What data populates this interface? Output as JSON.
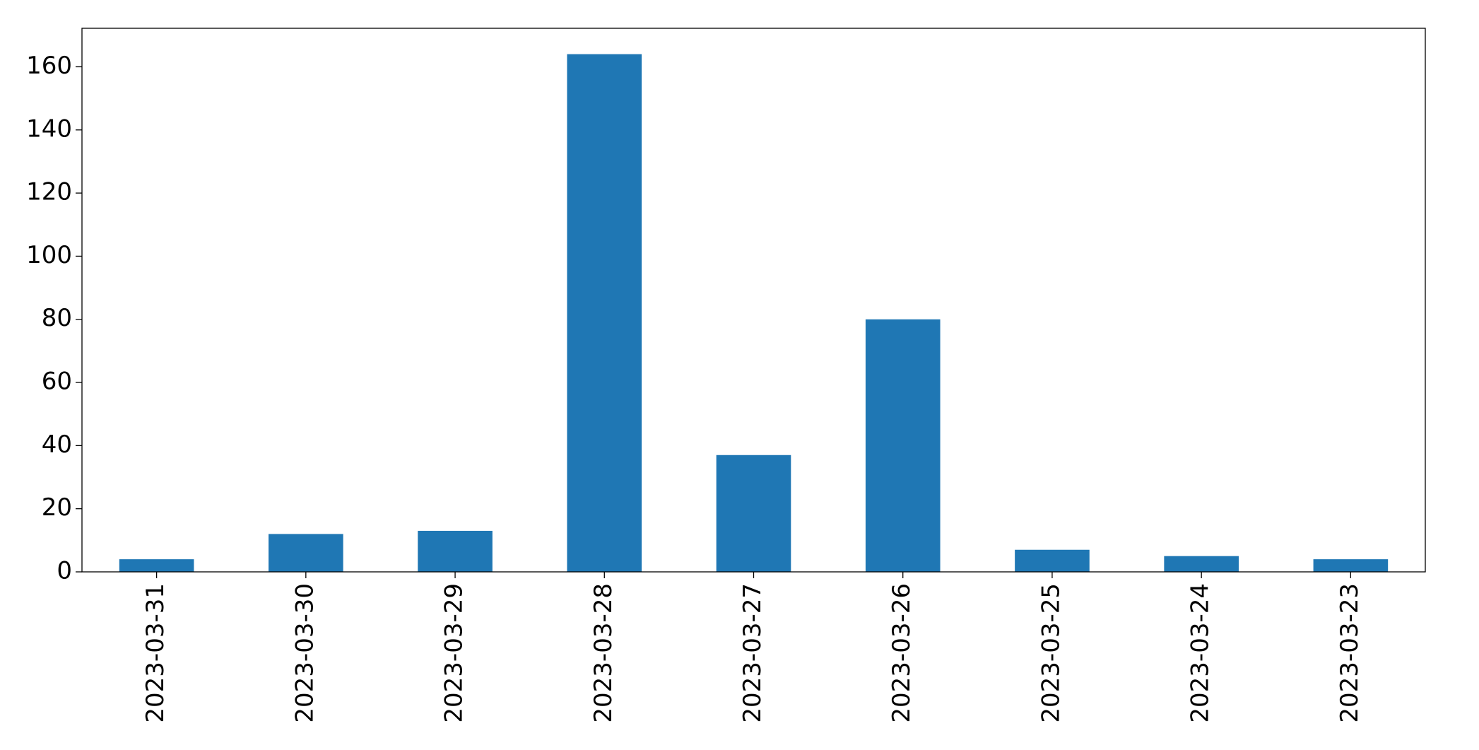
{
  "chart_data": {
    "type": "bar",
    "categories": [
      "2023-03-31",
      "2023-03-30",
      "2023-03-29",
      "2023-03-28",
      "2023-03-27",
      "2023-03-26",
      "2023-03-25",
      "2023-03-24",
      "2023-03-23"
    ],
    "values": [
      4,
      12,
      13,
      164,
      37,
      80,
      7,
      5,
      4
    ],
    "color": "#1f77b4",
    "ylim": [
      0,
      172.2
    ],
    "yticks": [
      0,
      20,
      40,
      60,
      80,
      100,
      120,
      140,
      160
    ],
    "grid": false
  }
}
